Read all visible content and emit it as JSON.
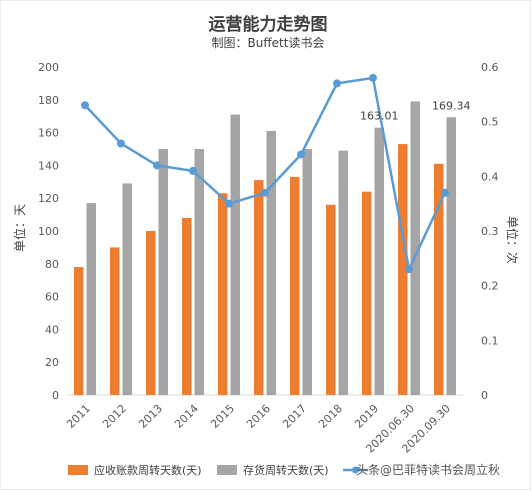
{
  "chart_data": {
    "type": "bar",
    "title": "运营能力走势图",
    "subtitle": "制图：Buffett读书会",
    "categories": [
      "2011",
      "2012",
      "2013",
      "2014",
      "2015",
      "2016",
      "2017",
      "2018",
      "2019",
      "2020.06.30",
      "2020.09.30"
    ],
    "left_axis": {
      "label": "单位：天",
      "ylim": [
        0,
        200
      ],
      "ticks": [
        "0",
        "20",
        "40",
        "60",
        "80",
        "100",
        "120",
        "140",
        "160",
        "180",
        "200"
      ]
    },
    "right_axis": {
      "label": "单位：次",
      "ylim": [
        0,
        0.6
      ],
      "ticks": [
        "0",
        "0.1",
        "0.2",
        "0.3",
        "0.4",
        "0.5",
        "0.6"
      ]
    },
    "series": [
      {
        "name": "应收账款周转天数(天)",
        "kind": "bar",
        "axis": "left",
        "color": "#ed7d31",
        "values": [
          78,
          90,
          100,
          108,
          123,
          131,
          133,
          116,
          124,
          153,
          141
        ]
      },
      {
        "name": "存货周转天数(天)",
        "kind": "bar",
        "axis": "left",
        "color": "#a5a5a5",
        "values": [
          117,
          129,
          150,
          150,
          171,
          161,
          150,
          149,
          163.01,
          179,
          169.34
        ]
      },
      {
        "name": "",
        "kind": "line",
        "axis": "right",
        "color": "#5b9bd5",
        "values": [
          0.53,
          0.46,
          0.42,
          0.41,
          0.35,
          0.37,
          0.44,
          0.57,
          0.58,
          0.23,
          0.37
        ]
      }
    ],
    "data_labels": [
      {
        "series": 1,
        "index": 8,
        "text": "163.01"
      },
      {
        "series": 1,
        "index": 10,
        "text": "169.34"
      }
    ],
    "watermark": "头条@巴菲特读书会周立秋",
    "grid": false,
    "legend_position": "bottom"
  }
}
